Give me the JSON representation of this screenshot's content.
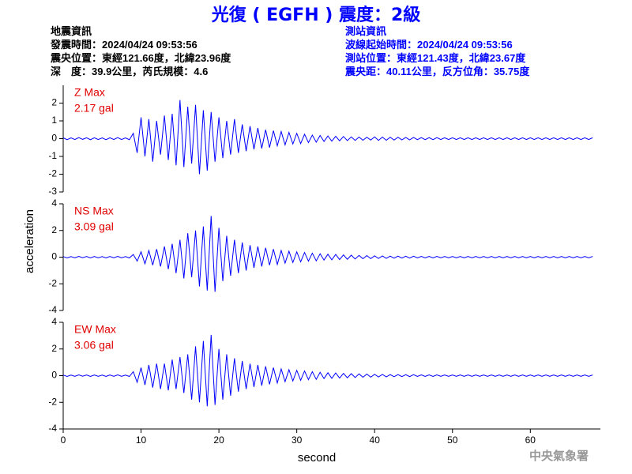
{
  "header": {
    "title": "光復 ( EGFH ) 震度：2級",
    "left": [
      "地震資訊",
      "發震時間：2024/04/24 09:53:56",
      "震央位置：東經121.66度，北緯23.96度",
      "深　度：39.9公里，芮氏規模：4.6"
    ],
    "right": [
      "測站資訊",
      "波線起始時間：2024/04/24 09:53:56",
      "測站位置：東經121.43度，北緯23.67度",
      "震央距：40.11公里，反方位角：35.75度"
    ]
  },
  "footer": "中央氣象署",
  "chart_data": [
    {
      "type": "line",
      "max_label": "Z Max",
      "max_value_label": "2.17 gal",
      "color": "#0000ff",
      "xlim": [
        0,
        69
      ],
      "ylim": [
        -3,
        3
      ],
      "yticks": [
        -3,
        -2,
        -1,
        0,
        1,
        2
      ],
      "x": [
        0,
        0.5,
        1,
        1.5,
        2,
        2.5,
        3,
        3.5,
        4,
        4.5,
        5,
        5.5,
        6,
        6.5,
        7,
        7.5,
        8,
        8.5,
        9,
        9.5,
        10,
        10.5,
        11,
        11.5,
        12,
        12.5,
        13,
        13.5,
        14,
        14.5,
        15,
        15.5,
        16,
        16.5,
        17,
        17.5,
        18,
        18.5,
        19,
        19.5,
        20,
        20.5,
        21,
        21.5,
        22,
        22.5,
        23,
        23.5,
        24,
        24.5,
        25,
        25.5,
        26,
        26.5,
        27,
        27.5,
        28,
        28.5,
        29,
        29.5,
        30,
        30.5,
        31,
        31.5,
        32,
        32.5,
        33,
        33.5,
        34,
        34.5,
        35,
        35.5,
        36,
        36.5,
        37,
        37.5,
        38,
        38.5,
        39,
        39.5,
        40,
        40.5,
        41,
        41.5,
        42,
        42.5,
        43,
        43.5,
        44,
        44.5,
        45,
        45.5,
        46,
        46.5,
        47,
        47.5,
        48,
        48.5,
        49,
        49.5,
        50,
        50.5,
        51,
        51.5,
        52,
        52.5,
        53,
        53.5,
        54,
        54.5,
        55,
        55.5,
        56,
        56.5,
        57,
        57.5,
        58,
        58.5,
        59,
        59.5,
        60,
        60.5,
        61,
        61.5,
        62,
        62.5,
        63,
        63.5,
        64,
        64.5,
        65,
        65.5,
        66,
        66.5,
        67,
        67.5,
        68
      ],
      "values": [
        0.05,
        -0.06,
        0.04,
        -0.05,
        0.06,
        -0.04,
        0.05,
        -0.06,
        0.05,
        -0.05,
        0.04,
        -0.06,
        0.05,
        -0.05,
        0.06,
        -0.05,
        0.04,
        -0.06,
        0.3,
        -0.8,
        1.2,
        -1.0,
        1.1,
        -1.3,
        1.0,
        -0.9,
        1.3,
        -1.2,
        1.4,
        -1.5,
        2.17,
        -1.6,
        1.8,
        -1.4,
        1.9,
        -2.0,
        1.6,
        -1.8,
        1.5,
        -1.3,
        1.2,
        -1.1,
        1.0,
        -0.9,
        1.1,
        -0.8,
        0.8,
        -0.7,
        0.7,
        -0.6,
        0.6,
        -0.55,
        0.5,
        -0.5,
        0.45,
        -0.4,
        0.4,
        -0.35,
        0.35,
        -0.3,
        0.3,
        -0.28,
        0.25,
        -0.22,
        0.2,
        -0.2,
        0.18,
        -0.16,
        0.15,
        -0.14,
        0.13,
        -0.12,
        0.12,
        -0.11,
        0.1,
        -0.1,
        0.09,
        -0.09,
        0.08,
        -0.08,
        0.1,
        -0.1,
        0.09,
        -0.09,
        0.08,
        -0.08,
        0.08,
        -0.07,
        0.07,
        -0.07,
        0.07,
        -0.06,
        0.06,
        -0.06,
        0.06,
        -0.06,
        0.06,
        -0.05,
        0.05,
        -0.05,
        0.05,
        -0.05,
        0.05,
        -0.05,
        0.05,
        -0.05,
        0.05,
        -0.05,
        0.05,
        -0.05,
        0.05,
        -0.05,
        0.05,
        -0.05,
        0.05,
        -0.05,
        0.05,
        -0.05,
        0.05,
        -0.05,
        0.05,
        -0.05,
        0.05,
        -0.05,
        0.05,
        -0.05,
        0.05,
        -0.05,
        0.05,
        -0.05,
        0.05,
        -0.05,
        0.05,
        -0.05,
        0.05,
        -0.05,
        0.05
      ]
    },
    {
      "type": "line",
      "max_label": "NS Max",
      "max_value_label": "3.09 gal",
      "color": "#0000ff",
      "y_label": "acceleration",
      "xlim": [
        0,
        69
      ],
      "ylim": [
        -4,
        4
      ],
      "yticks": [
        -4,
        -2,
        0,
        2,
        4
      ],
      "x": [
        0,
        0.5,
        1,
        1.5,
        2,
        2.5,
        3,
        3.5,
        4,
        4.5,
        5,
        5.5,
        6,
        6.5,
        7,
        7.5,
        8,
        8.5,
        9,
        9.5,
        10,
        10.5,
        11,
        11.5,
        12,
        12.5,
        13,
        13.5,
        14,
        14.5,
        15,
        15.5,
        16,
        16.5,
        17,
        17.5,
        18,
        18.5,
        19,
        19.5,
        20,
        20.5,
        21,
        21.5,
        22,
        22.5,
        23,
        23.5,
        24,
        24.5,
        25,
        25.5,
        26,
        26.5,
        27,
        27.5,
        28,
        28.5,
        29,
        29.5,
        30,
        30.5,
        31,
        31.5,
        32,
        32.5,
        33,
        33.5,
        34,
        34.5,
        35,
        35.5,
        36,
        36.5,
        37,
        37.5,
        38,
        38.5,
        39,
        39.5,
        40,
        40.5,
        41,
        41.5,
        42,
        42.5,
        43,
        43.5,
        44,
        44.5,
        45,
        45.5,
        46,
        46.5,
        47,
        47.5,
        48,
        48.5,
        49,
        49.5,
        50,
        50.5,
        51,
        51.5,
        52,
        52.5,
        53,
        53.5,
        54,
        54.5,
        55,
        55.5,
        56,
        56.5,
        57,
        57.5,
        58,
        58.5,
        59,
        59.5,
        60,
        60.5,
        61,
        61.5,
        62,
        62.5,
        63,
        63.5,
        64,
        64.5,
        65,
        65.5,
        66,
        66.5,
        67,
        67.5,
        68
      ],
      "values": [
        0.05,
        -0.06,
        0.04,
        -0.05,
        0.06,
        -0.04,
        0.05,
        -0.06,
        0.05,
        -0.05,
        0.04,
        -0.06,
        0.05,
        -0.05,
        0.06,
        -0.05,
        0.04,
        -0.06,
        0.2,
        -0.3,
        0.4,
        -0.5,
        0.5,
        -0.6,
        0.6,
        -0.7,
        0.8,
        -0.9,
        1.0,
        -1.2,
        1.3,
        -1.6,
        1.8,
        -1.5,
        2.0,
        -2.2,
        2.3,
        -2.5,
        3.09,
        -2.6,
        2.2,
        -1.8,
        1.6,
        -1.4,
        1.3,
        -1.2,
        1.1,
        -1.0,
        0.9,
        -0.8,
        0.8,
        -0.7,
        0.7,
        -0.6,
        0.6,
        -0.55,
        0.5,
        -0.45,
        0.45,
        -0.4,
        0.4,
        -0.35,
        0.35,
        -0.3,
        0.3,
        -0.28,
        0.25,
        -0.22,
        0.22,
        -0.2,
        0.2,
        -0.18,
        0.17,
        -0.16,
        0.15,
        -0.14,
        0.13,
        -0.12,
        0.12,
        -0.11,
        0.1,
        -0.1,
        0.09,
        -0.09,
        0.08,
        -0.08,
        0.08,
        -0.07,
        0.07,
        -0.07,
        0.07,
        -0.06,
        0.06,
        -0.06,
        0.06,
        -0.06,
        0.06,
        -0.05,
        0.05,
        -0.05,
        0.05,
        -0.05,
        0.05,
        -0.05,
        0.05,
        -0.05,
        0.05,
        -0.05,
        0.05,
        -0.05,
        0.05,
        -0.05,
        0.05,
        -0.05,
        0.05,
        -0.05,
        0.05,
        -0.05,
        0.05,
        -0.05,
        0.05,
        -0.05,
        0.05,
        -0.05,
        0.05,
        -0.05,
        0.05,
        -0.05,
        0.05,
        -0.05,
        0.05,
        -0.05,
        0.05,
        -0.05,
        0.05,
        -0.05,
        0.05
      ]
    },
    {
      "type": "line",
      "max_label": "EW Max",
      "max_value_label": "3.06 gal",
      "color": "#0000ff",
      "x_label": "second",
      "xlim": [
        0,
        69
      ],
      "xticks": [
        0,
        10,
        20,
        30,
        40,
        50,
        60
      ],
      "ylim": [
        -4,
        4
      ],
      "yticks": [
        -4,
        -2,
        0,
        2,
        4
      ],
      "x": [
        0,
        0.5,
        1,
        1.5,
        2,
        2.5,
        3,
        3.5,
        4,
        4.5,
        5,
        5.5,
        6,
        6.5,
        7,
        7.5,
        8,
        8.5,
        9,
        9.5,
        10,
        10.5,
        11,
        11.5,
        12,
        12.5,
        13,
        13.5,
        14,
        14.5,
        15,
        15.5,
        16,
        16.5,
        17,
        17.5,
        18,
        18.5,
        19,
        19.5,
        20,
        20.5,
        21,
        21.5,
        22,
        22.5,
        23,
        23.5,
        24,
        24.5,
        25,
        25.5,
        26,
        26.5,
        27,
        27.5,
        28,
        28.5,
        29,
        29.5,
        30,
        30.5,
        31,
        31.5,
        32,
        32.5,
        33,
        33.5,
        34,
        34.5,
        35,
        35.5,
        36,
        36.5,
        37,
        37.5,
        38,
        38.5,
        39,
        39.5,
        40,
        40.5,
        41,
        41.5,
        42,
        42.5,
        43,
        43.5,
        44,
        44.5,
        45,
        45.5,
        46,
        46.5,
        47,
        47.5,
        48,
        48.5,
        49,
        49.5,
        50,
        50.5,
        51,
        51.5,
        52,
        52.5,
        53,
        53.5,
        54,
        54.5,
        55,
        55.5,
        56,
        56.5,
        57,
        57.5,
        58,
        58.5,
        59,
        59.5,
        60,
        60.5,
        61,
        61.5,
        62,
        62.5,
        63,
        63.5,
        64,
        64.5,
        65,
        65.5,
        66,
        66.5,
        67,
        67.5,
        68
      ],
      "values": [
        0.05,
        -0.06,
        0.04,
        -0.05,
        0.06,
        -0.04,
        0.05,
        -0.06,
        0.05,
        -0.05,
        0.04,
        -0.06,
        0.05,
        -0.05,
        0.06,
        -0.05,
        0.04,
        -0.06,
        0.3,
        -0.5,
        0.6,
        -0.7,
        0.8,
        -0.9,
        0.9,
        -1.0,
        0.9,
        -1.1,
        1.2,
        -1.0,
        1.4,
        -1.3,
        1.6,
        -1.8,
        2.2,
        -2.0,
        2.6,
        -2.3,
        3.06,
        -2.2,
        2.0,
        -1.8,
        1.6,
        -1.5,
        1.3,
        -1.2,
        1.1,
        -1.0,
        0.9,
        -0.85,
        0.8,
        -0.75,
        0.7,
        -0.65,
        0.6,
        -0.55,
        0.5,
        -0.45,
        0.45,
        -0.4,
        0.4,
        -0.35,
        0.35,
        -0.3,
        0.3,
        -0.28,
        0.25,
        -0.22,
        0.22,
        -0.2,
        0.2,
        -0.18,
        0.17,
        -0.16,
        0.15,
        -0.14,
        0.13,
        -0.12,
        0.12,
        -0.11,
        0.1,
        -0.1,
        0.09,
        -0.09,
        0.08,
        -0.08,
        0.08,
        -0.07,
        0.07,
        -0.07,
        0.07,
        -0.06,
        0.06,
        -0.06,
        0.06,
        -0.06,
        0.06,
        -0.05,
        0.05,
        -0.05,
        0.05,
        -0.05,
        0.05,
        -0.05,
        0.05,
        -0.05,
        0.05,
        -0.05,
        0.05,
        -0.05,
        0.05,
        -0.05,
        0.05,
        -0.05,
        0.05,
        -0.05,
        0.05,
        -0.05,
        0.05,
        -0.05,
        0.05,
        -0.05,
        0.05,
        -0.05,
        0.05,
        -0.05,
        0.05,
        -0.05,
        0.05,
        -0.05,
        0.05,
        -0.05,
        0.05,
        -0.05,
        0.05,
        -0.05,
        0.05
      ]
    }
  ]
}
